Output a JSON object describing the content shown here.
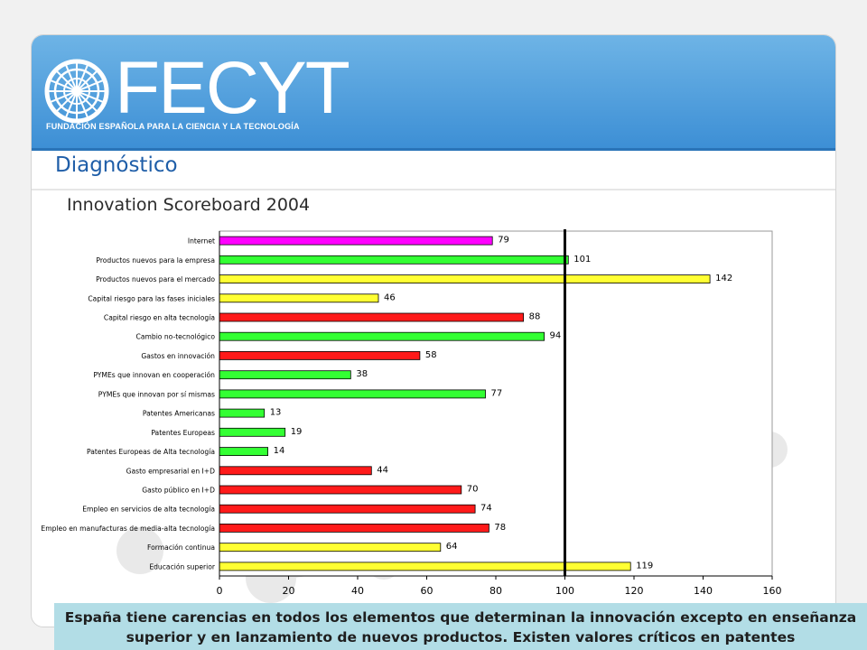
{
  "header": {
    "logo_text": "FECYT",
    "logo_subtitle": "FUNDACIÓN ESPAÑOLA PARA LA CIENCIA Y LA TECNOLOGÍA",
    "logo_emblem_icon": "globe-emblem-icon"
  },
  "section_title": "Diagnóstico",
  "subtitle": "Innovation Scoreboard 2004",
  "caption": "España tiene carencias en todos los elementos que determinan la innovación excepto en enseñanza superior y en lanzamiento de nuevos productos. Existen valores críticos en patentes",
  "colors": {
    "banner": "#4a9ad9",
    "title": "#1f5ea8",
    "caption_bg": "#b2dde6",
    "bar_magenta": "#ff00ff",
    "bar_green": "#33ff33",
    "bar_yellow": "#ffff33",
    "bar_red": "#ff1a1a"
  },
  "chart_data": {
    "type": "bar",
    "orientation": "horizontal",
    "title": "",
    "xlabel": "",
    "ylabel": "",
    "xlim": [
      0,
      160
    ],
    "xticks": [
      0,
      20,
      40,
      60,
      80,
      100,
      120,
      140,
      160
    ],
    "reference_line": 100,
    "grid": false,
    "categories": [
      "Internet",
      "Productos nuevos para la empresa",
      "Productos nuevos para el mercado",
      "Capital riesgo para las fases iniciales",
      "Capital riesgo en alta tecnología",
      "Cambio no-tecnológico",
      "Gastos en innovación",
      "PYMEs que innovan en cooperación",
      "PYMEs que innovan por sí mismas",
      "Patentes Americanas",
      "Patentes Europeas",
      "Patentes Europeas de Alta tecnología",
      "Gasto empresarial en I+D",
      "Gasto público en I+D",
      "Empleo en servicios de alta tecnología",
      "Empleo en manufacturas de media-alta tecnología",
      "Formación continua",
      "Educación superior"
    ],
    "values": [
      79,
      101,
      142,
      46,
      88,
      94,
      58,
      38,
      77,
      13,
      19,
      14,
      44,
      70,
      74,
      78,
      64,
      119
    ],
    "bar_colors": [
      "#ff00ff",
      "#33ff33",
      "#ffff33",
      "#ffff33",
      "#ff1a1a",
      "#33ff33",
      "#ff1a1a",
      "#33ff33",
      "#33ff33",
      "#33ff33",
      "#33ff33",
      "#33ff33",
      "#ff1a1a",
      "#ff1a1a",
      "#ff1a1a",
      "#ff1a1a",
      "#ffff33",
      "#ffff33"
    ]
  }
}
